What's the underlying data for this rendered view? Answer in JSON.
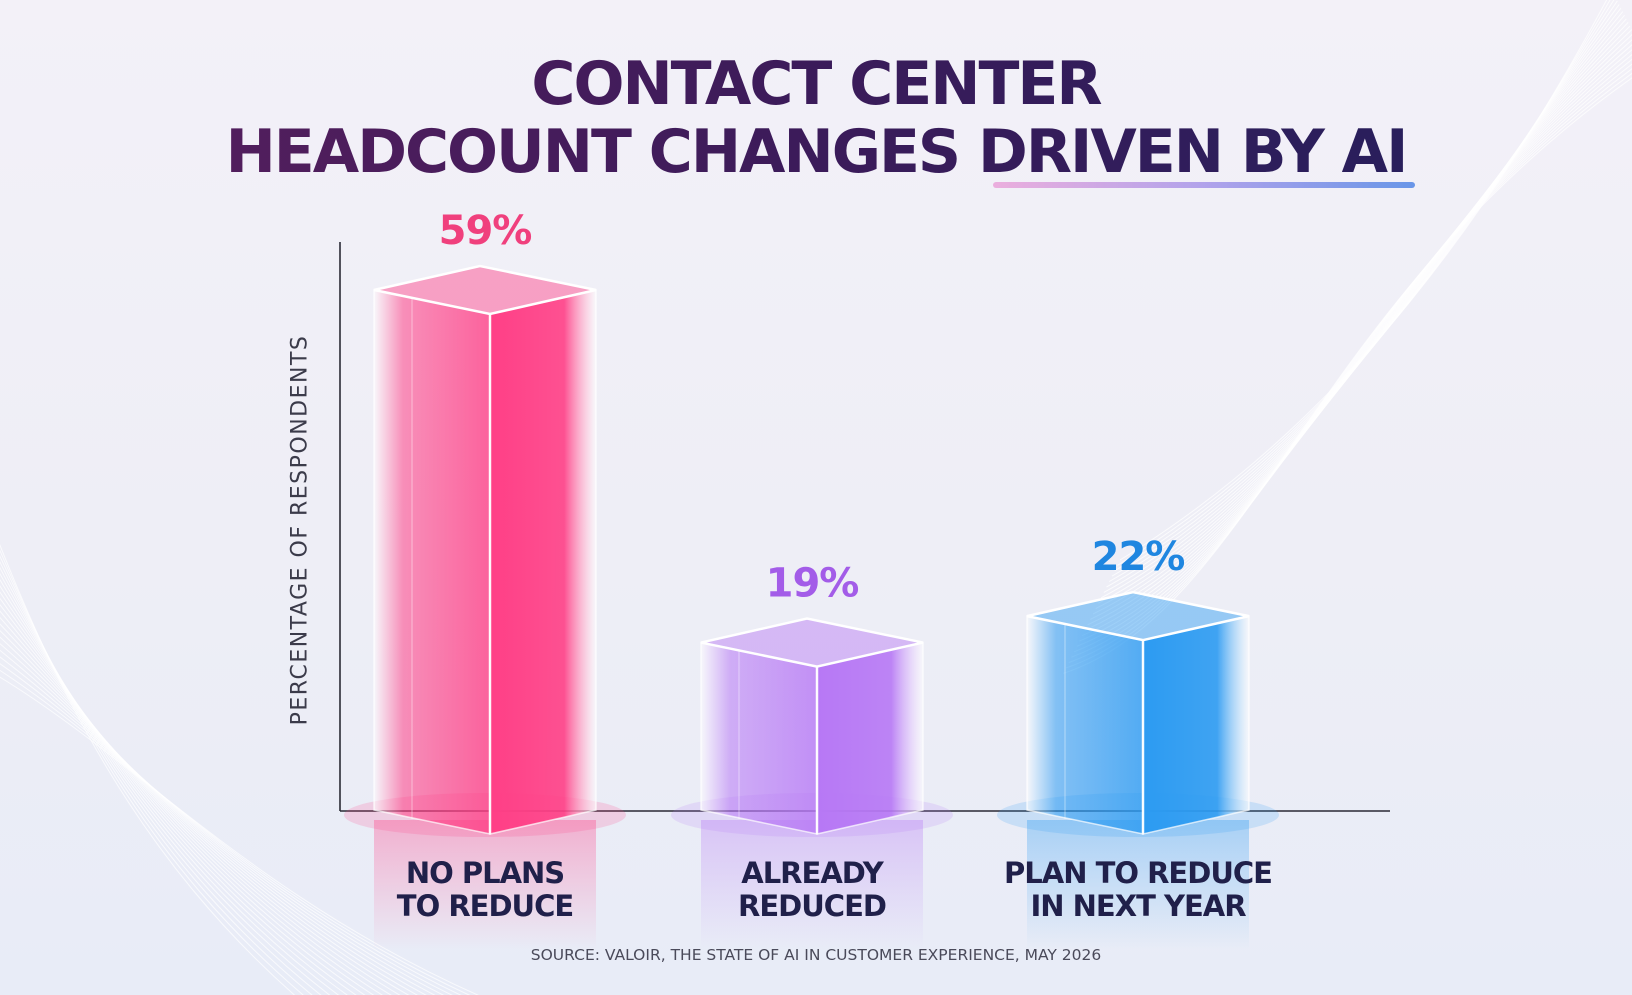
{
  "title": {
    "line1": "CONTACT CENTER",
    "line2": "HEADCOUNT CHANGES DRIVEN BY AI"
  },
  "source": "SOURCE: VALOIR, THE STATE OF AI IN CUSTOMER EXPERIENCE, MAY 2026",
  "colors": {
    "title": "#3b1b5a",
    "bar_pink": "#ff3f86",
    "bar_purple": "#b778f5",
    "bar_blue": "#2c9bf2",
    "label_pink": "#f0407d",
    "label_purple": "#a35ce8",
    "label_blue": "#1f86e0"
  },
  "chart_data": {
    "type": "bar",
    "title": "CONTACT CENTER HEADCOUNT CHANGES DRIVEN BY AI",
    "xlabel": "",
    "ylabel": "PERCENTAGE OF RESPONDENTS",
    "categories": [
      "NO PLANS TO REDUCE",
      "ALREADY REDUCED",
      "PLAN TO REDUCE IN NEXT YEAR"
    ],
    "category_lines": [
      [
        "NO PLANS",
        "TO REDUCE"
      ],
      [
        "ALREADY",
        "REDUCED"
      ],
      [
        "PLAN TO REDUCE",
        "IN NEXT YEAR"
      ]
    ],
    "values": [
      59,
      19,
      22
    ],
    "value_labels": [
      "59%",
      "19%",
      "22%"
    ],
    "ylim": [
      0,
      59
    ],
    "grid": false
  }
}
